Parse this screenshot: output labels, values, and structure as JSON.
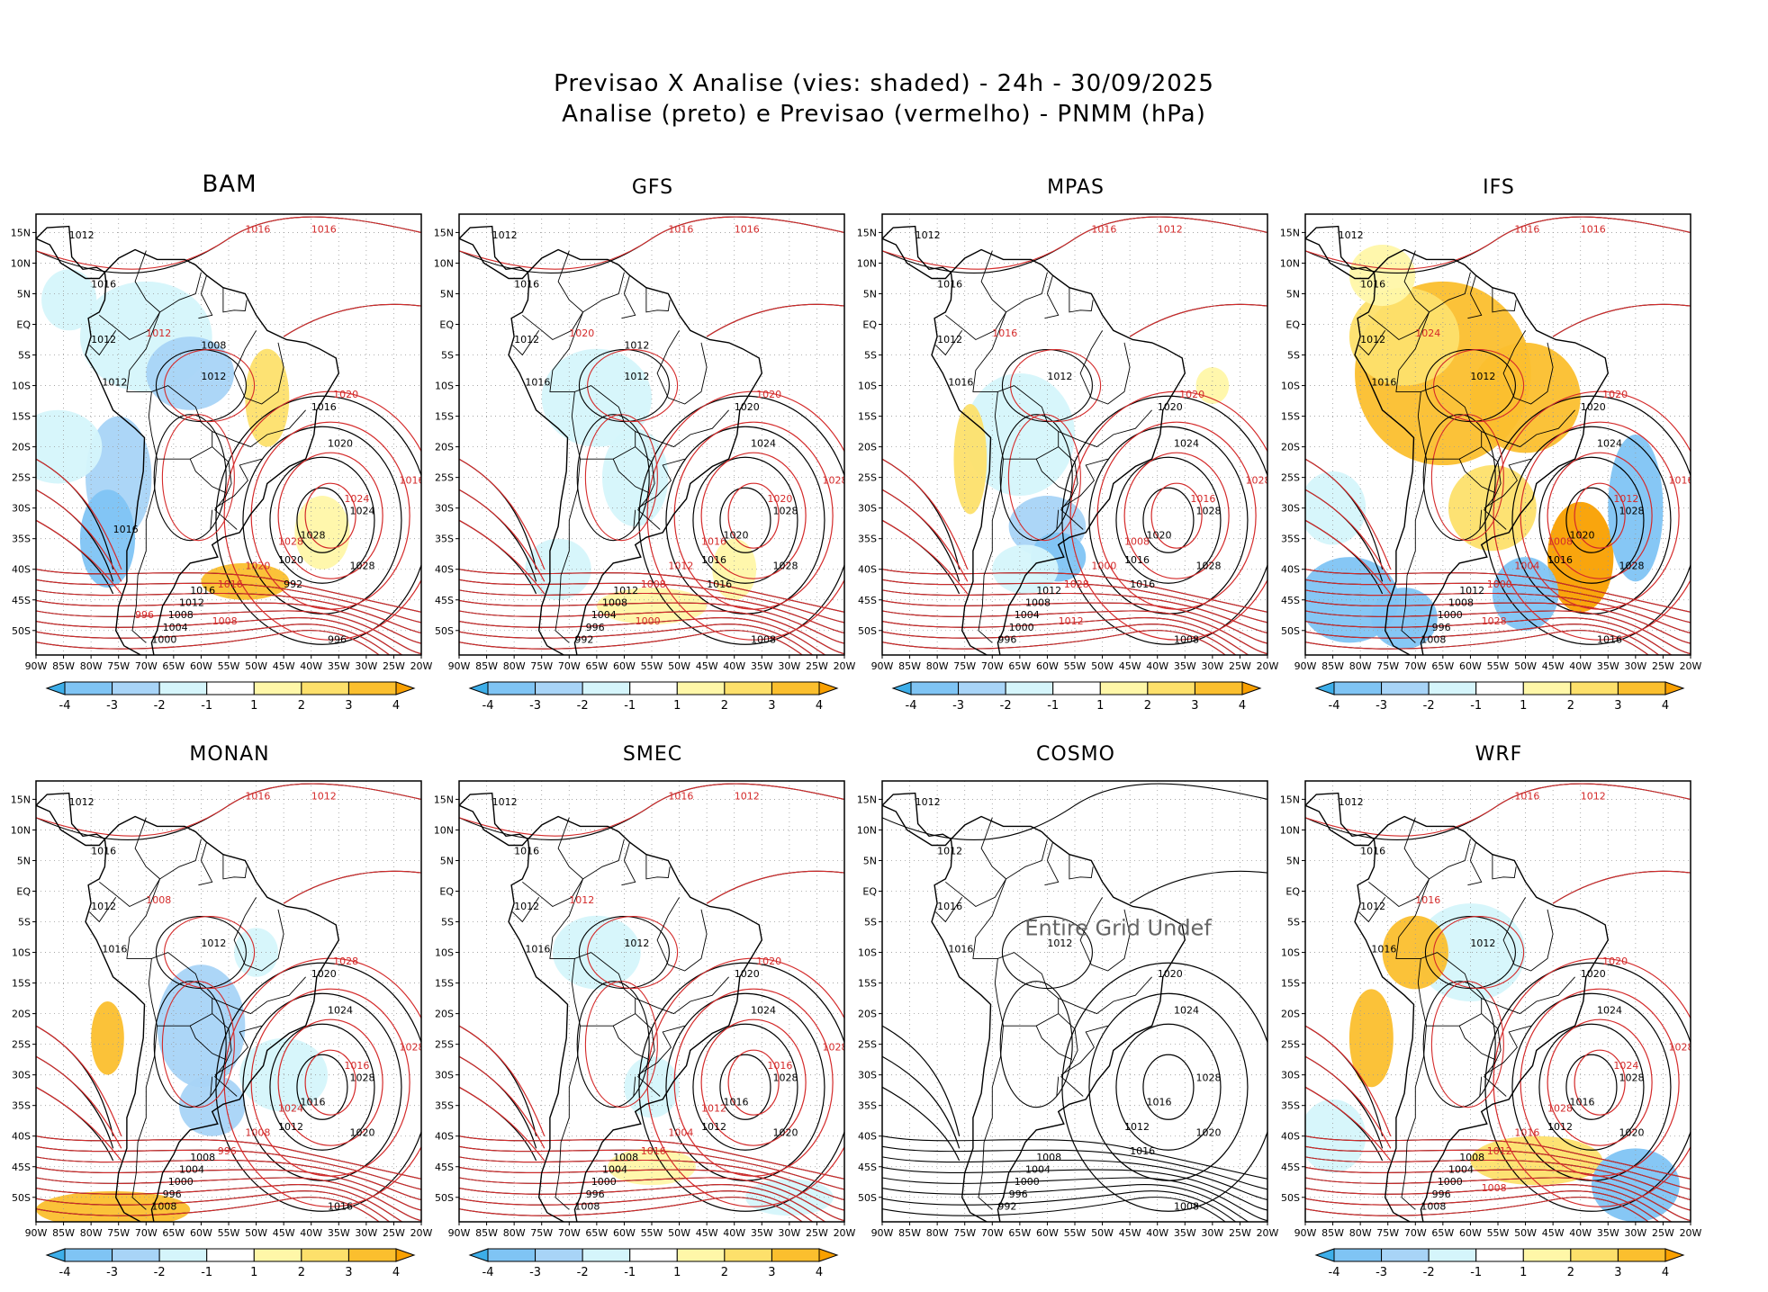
{
  "header": {
    "title_line1": "Previsao X Analise (vies: shaded) - 24h - 30/09/2025",
    "title_line2": "Analise (preto) e Previsao (vermelho) - PNMM (hPa)"
  },
  "axes": {
    "lat_ticks": [
      "15N",
      "10N",
      "5N",
      "EQ",
      "5S",
      "10S",
      "15S",
      "20S",
      "25S",
      "30S",
      "35S",
      "40S",
      "45S",
      "50S"
    ],
    "lon_ticks": [
      "90W",
      "85W",
      "80W",
      "75W",
      "70W",
      "65W",
      "60W",
      "55W",
      "50W",
      "45W",
      "40W",
      "35W",
      "30W",
      "25W",
      "20W"
    ]
  },
  "colorbar": {
    "labels": [
      "-4",
      "-3",
      "-2",
      "-1",
      "1",
      "2",
      "3",
      "4"
    ],
    "colors": [
      "#3daee9",
      "#7fc4f4",
      "#a8d4f7",
      "#d5f5fb",
      "#ffffff",
      "#fff7a8",
      "#fde06b",
      "#fbbf2e",
      "#f9a000"
    ]
  },
  "colors": {
    "analysis": "#000000",
    "forecast": "#d42a2a",
    "coast": "#000000",
    "grid": "#999999"
  },
  "panels": [
    {
      "name": "BAM",
      "big": true,
      "error": "",
      "labels_black": [
        "1012",
        "1016",
        "1012",
        "1012",
        "1012",
        "1016",
        "1020",
        "1024",
        "1028",
        "1028",
        "1020",
        "1016",
        "1012",
        "1008",
        "1004",
        "1000",
        "996",
        "992",
        "1008",
        "1016"
      ],
      "labels_red": [
        "1016",
        "1016",
        "1012",
        "1020",
        "1016",
        "1024",
        "1028",
        "1020",
        "1016",
        "1008",
        "996"
      ]
    },
    {
      "name": "GFS",
      "big": false,
      "error": "",
      "labels_black": [
        "1012",
        "1016",
        "1012",
        "1012",
        "1016",
        "1020",
        "1024",
        "1028",
        "1028",
        "1020",
        "1016",
        "1012",
        "1008",
        "1004",
        "996",
        "992",
        "1008",
        "1016",
        "1012"
      ],
      "labels_red": [
        "1016",
        "1016",
        "1020",
        "1020",
        "1028",
        "1020",
        "1016",
        "1012",
        "1008",
        "1000"
      ]
    },
    {
      "name": "MPAS",
      "big": false,
      "error": "",
      "labels_black": [
        "1012",
        "1016",
        "1012",
        "1012",
        "1016",
        "1020",
        "1024",
        "1028",
        "1028",
        "1020",
        "1016",
        "1012",
        "1008",
        "1004",
        "1000",
        "996",
        "1008",
        "1016"
      ],
      "labels_red": [
        "1016",
        "1012",
        "1016",
        "1020",
        "1028",
        "1016",
        "1008",
        "1000",
        "1028",
        "1012"
      ]
    },
    {
      "name": "IFS",
      "big": false,
      "error": "",
      "labels_black": [
        "1012",
        "1016",
        "1012",
        "1012",
        "1016",
        "1020",
        "1024",
        "1028",
        "1028",
        "1020",
        "1016",
        "1012",
        "1008",
        "1000",
        "996",
        "1008",
        "1016"
      ],
      "labels_red": [
        "1016",
        "1016",
        "1024",
        "1020",
        "1016",
        "1012",
        "1008",
        "1004",
        "1000",
        "1028"
      ]
    },
    {
      "name": "MONAN",
      "big": false,
      "error": "",
      "labels_black": [
        "1012",
        "1016",
        "1012",
        "1012",
        "1016",
        "1020",
        "1024",
        "1028",
        "1020",
        "1016",
        "1012",
        "1008",
        "1004",
        "1000",
        "996",
        "1008",
        "1016"
      ],
      "labels_red": [
        "1016",
        "1012",
        "1008",
        "1028",
        "1028",
        "1016",
        "1024",
        "1008",
        "996"
      ]
    },
    {
      "name": "SMEC",
      "big": false,
      "error": "",
      "labels_black": [
        "1012",
        "1016",
        "1012",
        "1012",
        "1016",
        "1020",
        "1024",
        "1028",
        "1020",
        "1016",
        "1012",
        "1008",
        "1004",
        "1000",
        "996",
        "1008"
      ],
      "labels_red": [
        "1016",
        "1012",
        "1012",
        "1020",
        "1028",
        "1016",
        "1012",
        "1004",
        "1016"
      ]
    },
    {
      "name": "COSMO",
      "big": false,
      "error": "Entire Grid Undef",
      "labels_black": [
        "1012",
        "1012",
        "1016",
        "1012",
        "1016",
        "1020",
        "1024",
        "1028",
        "1020",
        "1016",
        "1012",
        "1008",
        "1004",
        "1000",
        "996",
        "992",
        "1008",
        "1016"
      ],
      "labels_red": []
    },
    {
      "name": "WRF",
      "big": false,
      "error": "",
      "labels_black": [
        "1012",
        "1016",
        "1012",
        "1012",
        "1016",
        "1020",
        "1024",
        "1028",
        "1020",
        "1016",
        "1012",
        "1008",
        "1004",
        "1000",
        "996",
        "1008"
      ],
      "labels_red": [
        "1016",
        "1012",
        "1016",
        "1020",
        "1028",
        "1024",
        "1028",
        "1016",
        "1012",
        "1008"
      ]
    }
  ]
}
